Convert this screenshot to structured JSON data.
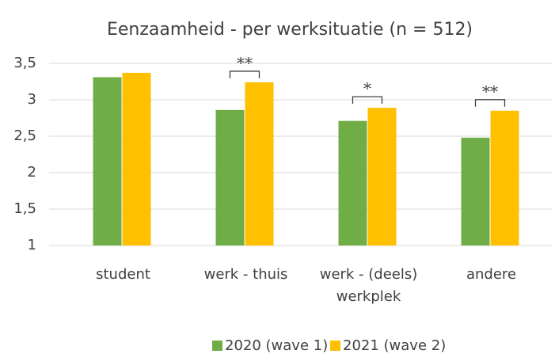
{
  "chart_data": {
    "type": "bar",
    "title": "Eenzaamheid - per werksituatie (n = 512)",
    "categories": [
      "student",
      "werk - thuis",
      "werk - (deels) werkplek",
      "andere"
    ],
    "series": [
      {
        "name": "2020 (wave 1)",
        "color": "#70ad47",
        "values": [
          3.31,
          2.86,
          2.71,
          2.48
        ]
      },
      {
        "name": "2021 (wave 2)",
        "color": "#ffc000",
        "values": [
          3.37,
          3.24,
          2.89,
          2.85
        ]
      }
    ],
    "significance": [
      null,
      "**",
      "*",
      "**"
    ],
    "ylim": [
      1,
      3.5
    ],
    "yticks": [
      1,
      {
        "value": 1.5,
        "label": "1,5"
      },
      2,
      {
        "value": 2.5,
        "label": "2,5"
      },
      3,
      {
        "value": 3.5,
        "label": "3,5"
      }
    ],
    "grid": true,
    "legend": "bottom"
  }
}
